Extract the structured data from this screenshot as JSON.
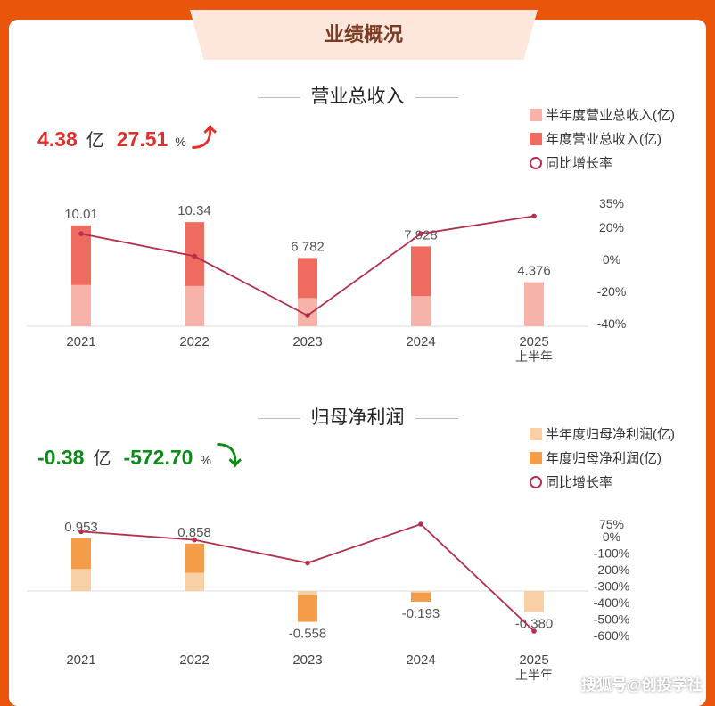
{
  "header": {
    "title": "业绩概况"
  },
  "revenue": {
    "section_title": "营业总收入",
    "stat_value": "4.38",
    "stat_unit": "亿",
    "stat_pct": "27.51",
    "stat_pct_unit": "%",
    "trend": "up",
    "legend": {
      "half_label": "半年度营业总收入(亿)",
      "annual_label": "年度营业总收入(亿)",
      "growth_label": "同比增长率"
    }
  },
  "profit": {
    "section_title": "归母净利润",
    "stat_value": "-0.38",
    "stat_unit": "亿",
    "stat_pct": "-572.70",
    "stat_pct_unit": "%",
    "trend": "down",
    "legend": {
      "half_label": "半年度归母净利润(亿)",
      "annual_label": "年度归母净利润(亿)",
      "growth_label": "同比增长率"
    }
  },
  "watermark": "搜狐号@创投学社",
  "colors": {
    "revenue_half": "#f7b3aa",
    "revenue_annual": "#ef6a5f",
    "profit_half": "#f9cfa5",
    "profit_annual": "#f59c48",
    "growth_line": "#b2304e",
    "stat_up": "#e0302b",
    "stat_down": "#0a8a16",
    "background": "#e8550b"
  },
  "chart_data": [
    {
      "type": "bar",
      "categories": [
        "2021",
        "2022",
        "2023",
        "2024",
        "2025\n上半年"
      ],
      "series": [
        {
          "name": "半年度营业总收入(亿)",
          "values": [
            4.1,
            4.0,
            2.8,
            3.0,
            4.376
          ]
        },
        {
          "name": "年度营业总收入(亿)",
          "values": [
            10.01,
            10.34,
            6.782,
            7.928,
            null
          ]
        },
        {
          "name": "同比增长率",
          "type": "line",
          "axis": "right",
          "values": [
            16,
            2,
            -35,
            16,
            27
          ]
        }
      ],
      "labels": [
        "10.01",
        "10.34",
        "6.782",
        "7.928",
        "4.376"
      ],
      "y_right_ticks": [
        "35%",
        "20%",
        "0%",
        "-20%",
        "-40%"
      ],
      "y_right_lim": [
        -40,
        35
      ]
    },
    {
      "type": "bar",
      "categories": [
        "2021",
        "2022",
        "2023",
        "2024",
        "2025\n上半年"
      ],
      "series": [
        {
          "name": "半年度归母净利润(亿)",
          "values": [
            0.4,
            0.33,
            -0.08,
            -0.03,
            -0.38
          ]
        },
        {
          "name": "年度归母净利润(亿)",
          "values": [
            0.953,
            0.858,
            -0.558,
            -0.193,
            null
          ]
        },
        {
          "name": "同比增长率",
          "type": "line",
          "axis": "right",
          "values": [
            30,
            -20,
            -160,
            75,
            -573
          ]
        }
      ],
      "labels": [
        "0.953",
        "0.858",
        "-0.558",
        "-0.193",
        "-0.380"
      ],
      "y_right_ticks": [
        "75%",
        "0%",
        "-100%",
        "-200%",
        "-300%",
        "-400%",
        "-500%",
        "-600%"
      ],
      "y_right_lim": [
        -600,
        75
      ]
    }
  ]
}
